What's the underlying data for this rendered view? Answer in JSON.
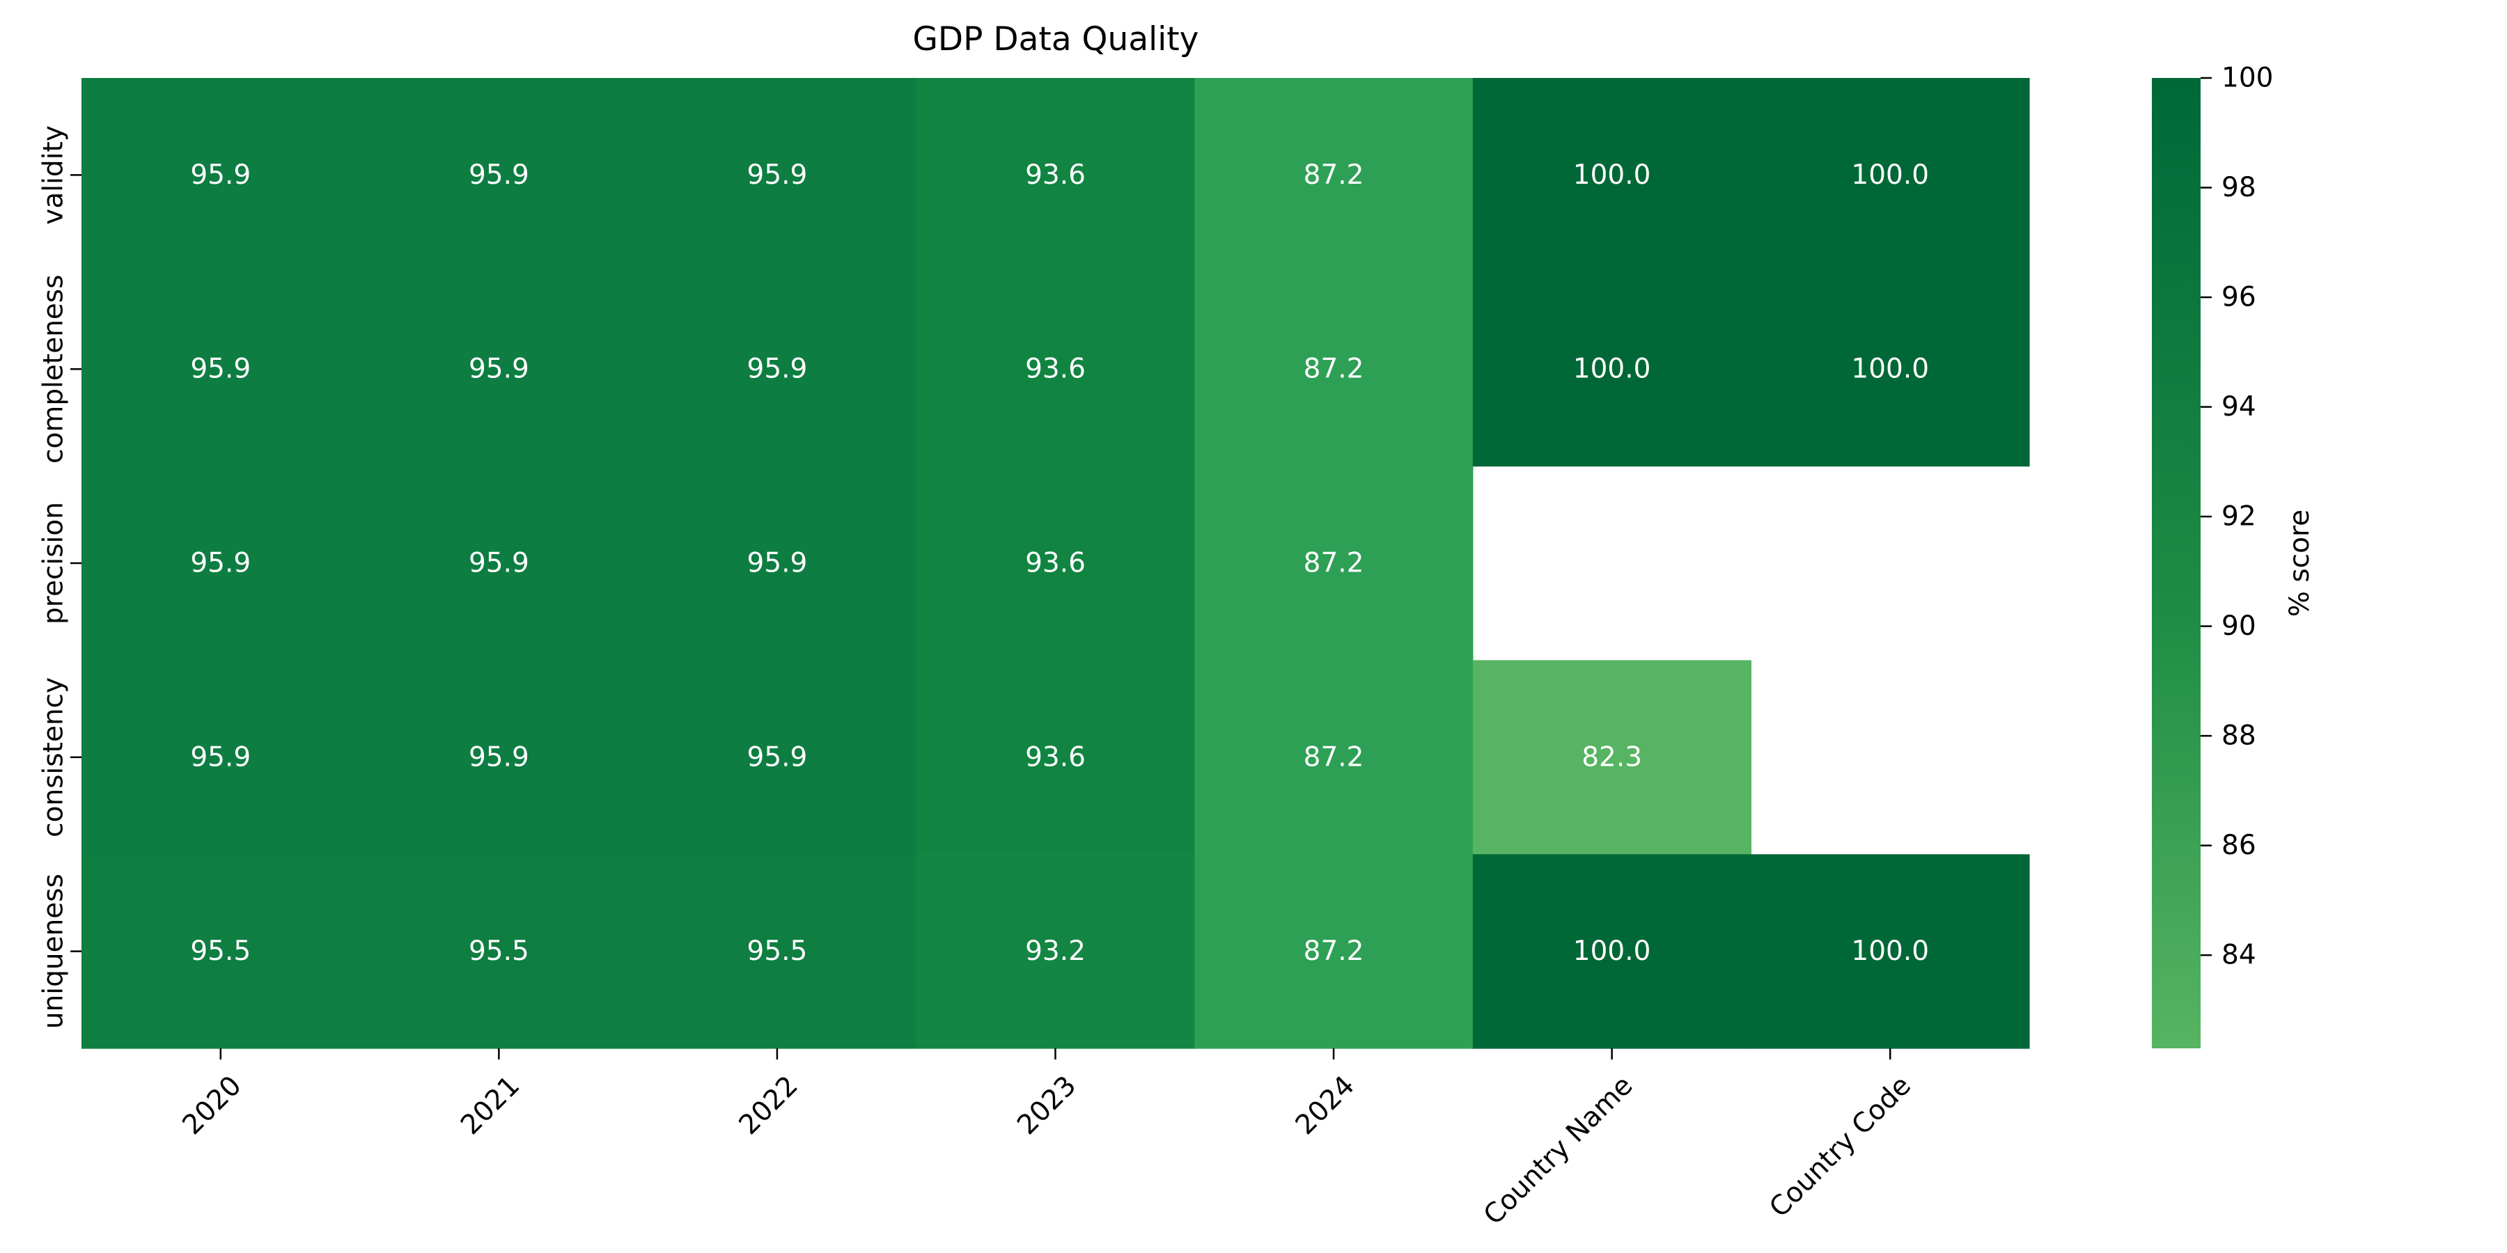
{
  "chart_data": {
    "type": "heatmap",
    "title": "GDP Data Quality",
    "xlabel": "",
    "ylabel": "",
    "columns": [
      "2020",
      "2021",
      "2022",
      "2023",
      "2024",
      "Country Name",
      "Country Code"
    ],
    "rows": [
      "validity",
      "completeness",
      "precision",
      "consistency",
      "uniqueness"
    ],
    "values": [
      [
        95.9,
        95.9,
        95.9,
        93.6,
        87.2,
        100.0,
        100.0
      ],
      [
        95.9,
        95.9,
        95.9,
        93.6,
        87.2,
        100.0,
        100.0
      ],
      [
        95.9,
        95.9,
        95.9,
        93.6,
        87.2,
        null,
        null
      ],
      [
        95.9,
        95.9,
        95.9,
        93.6,
        87.2,
        82.3,
        null
      ],
      [
        95.5,
        95.5,
        95.5,
        93.2,
        87.2,
        100.0,
        100.0
      ]
    ],
    "value_format": "one decimal",
    "colormap": "Greens",
    "colorbar": {
      "label": "% score",
      "range": [
        82.3,
        100
      ],
      "ticks": [
        84,
        86,
        88,
        90,
        92,
        94,
        96,
        98,
        100
      ],
      "colors": {
        "low": "#56b462",
        "mid": "#1e8c45",
        "high": "#006837"
      }
    },
    "missing_cells": "blank",
    "grid": false
  }
}
